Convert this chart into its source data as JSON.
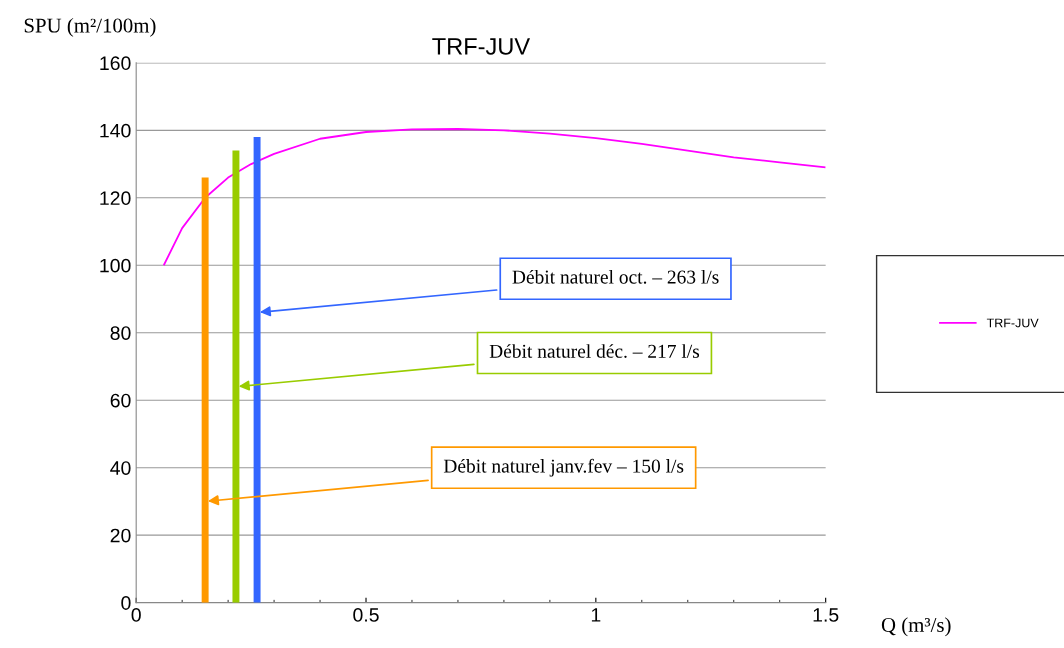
{
  "chart_data": {
    "type": "line",
    "title": "TRF-JUV",
    "xlabel": "Q (m³/s)",
    "ylabel": "SPU (m²/100m)",
    "series": [
      {
        "name": "TRF-JUV",
        "color": "#ff00ff",
        "x": [
          0.06,
          0.1,
          0.15,
          0.2,
          0.25,
          0.3,
          0.4,
          0.5,
          0.6,
          0.7,
          0.8,
          0.9,
          1.0,
          1.1,
          1.2,
          1.3,
          1.4,
          1.5
        ],
        "values": [
          100,
          111,
          120,
          126,
          130,
          133,
          137.5,
          139.5,
          140.3,
          140.4,
          140,
          139,
          137.7,
          136,
          134,
          132,
          130.5,
          129
        ]
      },
      {
        "color": "#ff9900",
        "x": [
          0.15,
          0.15
        ],
        "values": [
          0,
          126
        ]
      },
      {
        "color": "#99cc00",
        "x": [
          0.217,
          0.217
        ],
        "values": [
          0,
          134
        ]
      },
      {
        "color": "#3366ff",
        "x": [
          0.263,
          0.263
        ],
        "values": [
          0,
          138
        ]
      }
    ],
    "annotations": [
      {
        "text": "Débit naturel janv.fev – 150 l/s",
        "x": 0.15,
        "y": 30
      },
      {
        "text": "Débit naturel déc. – 217 l/s",
        "x": 0.217,
        "y": 64
      },
      {
        "text": "Débit naturel oct. – 263 l/s",
        "x": 0.263,
        "y": 86
      }
    ],
    "xlim": [
      0,
      1.5
    ],
    "xticks": [
      0,
      0.5,
      1,
      1.5
    ],
    "ylim": [
      0,
      160
    ],
    "yticks": [
      0,
      20,
      40,
      60,
      80,
      100,
      120,
      140,
      160
    ],
    "grid": "y",
    "legend": "right",
    "marker": "none",
    "line_style": "solid"
  }
}
